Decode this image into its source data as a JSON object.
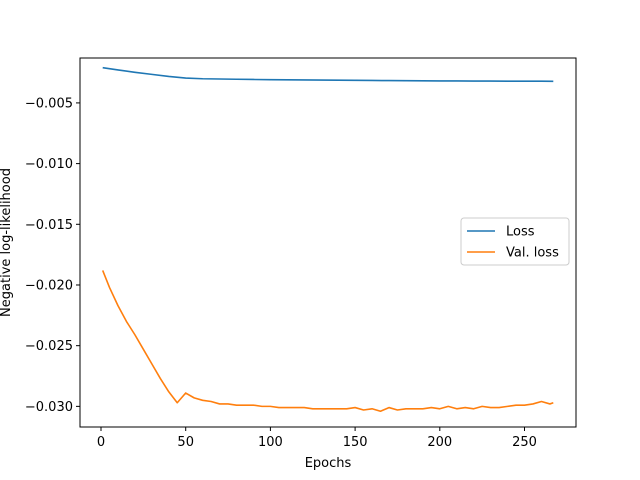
{
  "chart_data": {
    "type": "line",
    "title": "",
    "xlabel": "Epochs",
    "ylabel": "Negative log-likelihood",
    "xlim": [
      -12.4,
      280.4
    ],
    "ylim": [
      -0.0317,
      -0.0013
    ],
    "xticks": [
      0,
      50,
      100,
      150,
      200,
      250
    ],
    "xtick_labels": [
      "0",
      "50",
      "100",
      "150",
      "200",
      "250"
    ],
    "yticks": [
      -0.005,
      -0.01,
      -0.015,
      -0.02,
      -0.025,
      -0.03
    ],
    "ytick_labels": [
      "−0.005",
      "−0.010",
      "−0.015",
      "−0.020",
      "−0.025",
      "−0.030"
    ],
    "grid": false,
    "legend_position": "center-right",
    "series": [
      {
        "name": "Loss",
        "color": "#1f77b4",
        "x": [
          1,
          10,
          20,
          30,
          40,
          50,
          60,
          70,
          80,
          90,
          100,
          110,
          120,
          130,
          140,
          150,
          160,
          170,
          180,
          190,
          200,
          210,
          220,
          230,
          240,
          250,
          260,
          267
        ],
        "values": [
          -0.0021,
          -0.00228,
          -0.00248,
          -0.00265,
          -0.00282,
          -0.00295,
          -0.00301,
          -0.00303,
          -0.00305,
          -0.00307,
          -0.00309,
          -0.0031,
          -0.00311,
          -0.00312,
          -0.00313,
          -0.00314,
          -0.00315,
          -0.00316,
          -0.00317,
          -0.00318,
          -0.00319,
          -0.00319,
          -0.0032,
          -0.0032,
          -0.00321,
          -0.00321,
          -0.00321,
          -0.00322
        ]
      },
      {
        "name": "Val. loss",
        "color": "#ff7f0e",
        "x": [
          1,
          5,
          10,
          15,
          20,
          25,
          30,
          35,
          40,
          45,
          50,
          55,
          60,
          65,
          70,
          75,
          80,
          85,
          90,
          95,
          100,
          105,
          110,
          115,
          120,
          125,
          130,
          135,
          140,
          145,
          150,
          155,
          160,
          165,
          170,
          175,
          180,
          185,
          190,
          195,
          200,
          205,
          210,
          215,
          220,
          225,
          230,
          235,
          240,
          245,
          250,
          255,
          260,
          265,
          267
        ],
        "values": [
          -0.0188,
          -0.0202,
          -0.0217,
          -0.023,
          -0.0241,
          -0.0253,
          -0.0265,
          -0.0277,
          -0.0288,
          -0.0297,
          -0.0289,
          -0.0293,
          -0.0295,
          -0.0296,
          -0.0298,
          -0.0298,
          -0.0299,
          -0.0299,
          -0.0299,
          -0.03,
          -0.03,
          -0.0301,
          -0.0301,
          -0.0301,
          -0.0301,
          -0.0302,
          -0.0302,
          -0.0302,
          -0.0302,
          -0.0302,
          -0.0301,
          -0.0303,
          -0.0302,
          -0.0304,
          -0.0301,
          -0.0303,
          -0.0302,
          -0.0302,
          -0.0302,
          -0.0301,
          -0.0302,
          -0.03,
          -0.0302,
          -0.0301,
          -0.0302,
          -0.03,
          -0.0301,
          -0.0301,
          -0.03,
          -0.0299,
          -0.0299,
          -0.0298,
          -0.0296,
          -0.0298,
          -0.0297
        ]
      }
    ]
  }
}
